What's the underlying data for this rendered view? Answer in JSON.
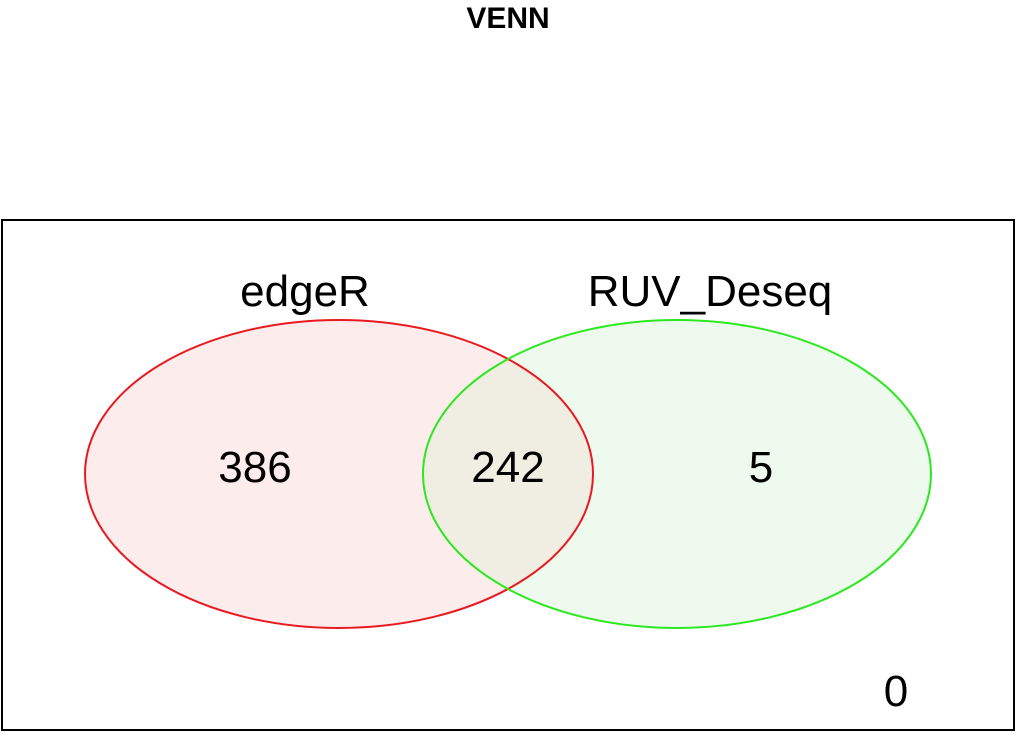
{
  "title": "VENN",
  "sets": [
    {
      "label": "edgeR",
      "border_color": "#e8191f",
      "fill_color": "#fcecec"
    },
    {
      "label": "RUV_Deseq",
      "border_color": "#2be81f",
      "fill_color": "#eefaee"
    }
  ],
  "overlap_fill_color": "#f0ede2",
  "counts": {
    "only_a": "386",
    "both": "242",
    "only_b": "5",
    "neither": "0"
  }
}
